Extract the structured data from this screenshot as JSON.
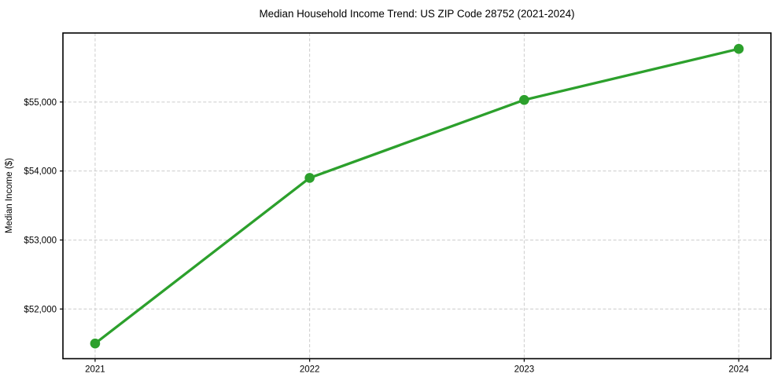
{
  "chart_data": {
    "type": "line",
    "title": "Median Household Income Trend: US ZIP Code 28752 (2021-2024)",
    "xlabel": "",
    "ylabel": "Median Income ($)",
    "categories": [
      2021,
      2022,
      2023,
      2024
    ],
    "x_tick_labels": [
      "2021",
      "2022",
      "2023",
      "2024"
    ],
    "series": [
      {
        "values": [
          51500,
          53900,
          55030,
          55770
        ],
        "color": "#2ca02c",
        "marker": "circle",
        "line_width": 3.3,
        "marker_radius": 6.3
      }
    ],
    "y_ticks": [
      52000,
      53000,
      54000,
      55000
    ],
    "y_tick_labels": [
      "$52,000",
      "$53,000",
      "$54,000",
      "$55,000"
    ],
    "xlim": [
      2020.85,
      2024.15
    ],
    "ylim": [
      51280,
      56000
    ],
    "grid": true,
    "grid_style": "dashed",
    "grid_color": "#cccccc",
    "spine_color": "#000000",
    "tick_color": "#000000",
    "text_color": "#000000",
    "background": "#ffffff",
    "legend_position": "none"
  }
}
